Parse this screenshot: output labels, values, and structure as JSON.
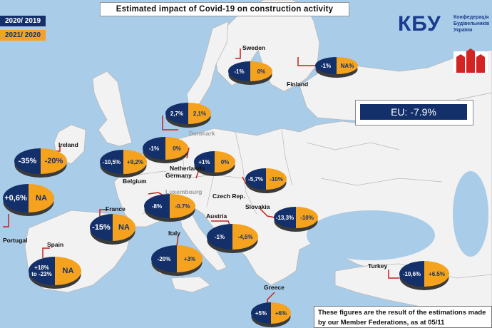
{
  "title": "Estimated impact of Covid-19 on construction activity",
  "legend": [
    {
      "label": "2020/ 2019",
      "color": "#13306b"
    },
    {
      "label": "2021/ 2020",
      "color": "#f5a21e"
    }
  ],
  "logo": {
    "kbu": "КБУ",
    "kbu_sub": [
      "Конфедерація",
      "Будівельників",
      "України"
    ],
    "fiec": "FIEC"
  },
  "eu_total": "EU: -7.9%",
  "note": "These figures are the result of the estimations made by our Member Federations, as at 05/11",
  "countries": [
    {
      "name": "Sweden",
      "v2020": "-1%",
      "v2021": "0%"
    },
    {
      "name": "Finland",
      "v2020": "-1%",
      "v2021": "NA%"
    },
    {
      "name": "Denmark",
      "v2020": "2,7%",
      "v2021": "2,1%"
    },
    {
      "name": "Ireland",
      "v2020": "-35%",
      "v2021": "-20%"
    },
    {
      "name": "Netherlands",
      "v2020": "-1%",
      "v2021": "0%"
    },
    {
      "name": "Belgium",
      "v2020": "-10,5%",
      "v2021": "+9,2%"
    },
    {
      "name": "Germany",
      "v2020": "+1%",
      "v2021": "0%"
    },
    {
      "name": "Czech Rep.",
      "v2020": "-5,7%",
      "v2021": "-10%"
    },
    {
      "name": "Portugal",
      "v2020": "+0,6%",
      "v2021": "NA"
    },
    {
      "name": "Luxembourg",
      "v2020": "-8%",
      "v2021": "-0.7%"
    },
    {
      "name": "France",
      "v2020": "-15%",
      "v2021": "NA"
    },
    {
      "name": "Slovakia",
      "v2020": "-13,3%",
      "v2021": "-10%"
    },
    {
      "name": "Austria",
      "v2020": "-1%",
      "v2021": "-4,5%"
    },
    {
      "name": "Spain",
      "v2020": "+18% to -23%",
      "v2021": "NA"
    },
    {
      "name": "Italy",
      "v2020": "-20%",
      "v2021": "+3%"
    },
    {
      "name": "Turkey",
      "v2020": "-10,6%",
      "v2021": "+6.5%"
    },
    {
      "name": "Greece",
      "v2020": "+5%",
      "v2021": "+6%"
    }
  ]
}
